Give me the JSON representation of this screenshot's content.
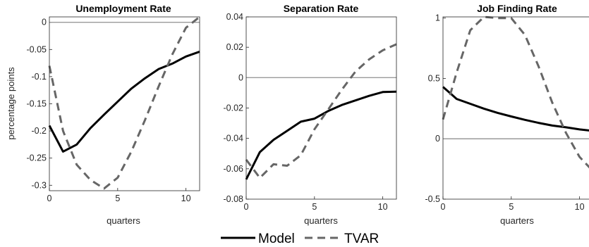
{
  "chart_data": [
    {
      "type": "line",
      "title": "Unemployment Rate",
      "xlabel": "quarters",
      "ylabel": "percentage points",
      "xlim": [
        0,
        11
      ],
      "ylim": [
        -0.31,
        0.01
      ],
      "xticks": [
        0,
        5,
        10
      ],
      "xtick_labels": [
        "0",
        "5",
        "10"
      ],
      "yticks": [
        0,
        -0.05,
        -0.1,
        -0.15,
        -0.2,
        -0.25,
        -0.3
      ],
      "ytick_labels": [
        "0",
        "-0.05",
        "-0.1",
        "-0.15",
        "-0.2",
        "-0.25",
        "-0.3"
      ],
      "zero_line": true,
      "x": [
        0,
        1,
        2,
        3,
        4,
        5,
        6,
        7,
        8,
        9,
        10,
        11
      ],
      "series": [
        {
          "name": "Model",
          "values": [
            -0.19,
            -0.238,
            -0.225,
            -0.195,
            -0.17,
            -0.146,
            -0.122,
            -0.103,
            -0.086,
            -0.076,
            -0.063,
            -0.054
          ]
        },
        {
          "name": "TVAR",
          "values": [
            -0.08,
            -0.2,
            -0.262,
            -0.29,
            -0.306,
            -0.286,
            -0.238,
            -0.18,
            -0.118,
            -0.059,
            -0.01,
            0.01
          ]
        }
      ]
    },
    {
      "type": "line",
      "title": "Separation Rate",
      "xlabel": "quarters",
      "ylabel": "",
      "xlim": [
        0,
        11
      ],
      "ylim": [
        -0.08,
        0.04
      ],
      "xticks": [
        0,
        5,
        10
      ],
      "xtick_labels": [
        "0",
        "5",
        "10"
      ],
      "yticks": [
        0.04,
        0.02,
        0,
        -0.02,
        -0.04,
        -0.06,
        -0.08
      ],
      "ytick_labels": [
        "0.04",
        "0.02",
        "0",
        "-0.02",
        "-0.04",
        "-0.06",
        "-0.08"
      ],
      "zero_line": true,
      "x": [
        0,
        1,
        2,
        3,
        4,
        5,
        6,
        7,
        8,
        9,
        10,
        11
      ],
      "series": [
        {
          "name": "Model",
          "values": [
            -0.067,
            -0.049,
            -0.041,
            -0.035,
            -0.029,
            -0.027,
            -0.022,
            -0.018,
            -0.015,
            -0.012,
            -0.0095,
            -0.0092
          ]
        },
        {
          "name": "TVAR",
          "values": [
            -0.054,
            -0.066,
            -0.057,
            -0.058,
            -0.051,
            -0.034,
            -0.021,
            -0.008,
            0.004,
            0.012,
            0.018,
            0.022
          ]
        }
      ]
    },
    {
      "type": "line",
      "title": "Job Finding Rate",
      "xlabel": "quarters",
      "ylabel": "",
      "xlim": [
        0,
        11
      ],
      "ylim": [
        -0.5,
        1.01
      ],
      "xticks": [
        0,
        5,
        10
      ],
      "xtick_labels": [
        "0",
        "5",
        "10"
      ],
      "yticks": [
        1,
        0.5,
        0,
        -0.5
      ],
      "ytick_labels": [
        "1",
        "0.5",
        "0",
        "-0.5"
      ],
      "zero_line": true,
      "x": [
        0,
        1,
        2,
        3,
        4,
        5,
        6,
        7,
        8,
        9,
        10,
        11
      ],
      "series": [
        {
          "name": "Model",
          "values": [
            0.43,
            0.33,
            0.29,
            0.25,
            0.215,
            0.185,
            0.157,
            0.132,
            0.11,
            0.095,
            0.078,
            0.065
          ]
        },
        {
          "name": "TVAR",
          "values": [
            0.16,
            0.55,
            0.9,
            1.01,
            1.0,
            1.0,
            0.86,
            0.6,
            0.3,
            0.05,
            -0.15,
            -0.27
          ]
        }
      ]
    }
  ],
  "legend": {
    "position": "bottom-center",
    "entries": [
      {
        "label": "Model",
        "style": "solid",
        "color": "#000000"
      },
      {
        "label": "TVAR",
        "style": "dashed",
        "color": "#666666"
      }
    ]
  },
  "colors": {
    "model": "#000000",
    "tvar": "#666666",
    "zero_line": "#9a9a9a",
    "axis": "#262626"
  }
}
